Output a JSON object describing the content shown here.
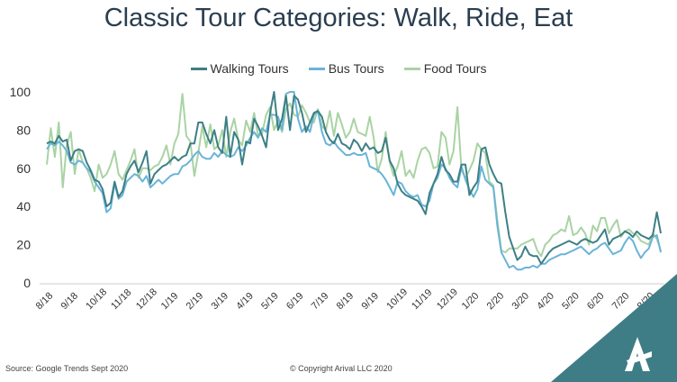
{
  "title": "Classic Tour Categories: Walk, Ride, Eat",
  "footer": {
    "source": "Source: Google Trends Sept 2020",
    "copyright": "© Copyright Arival LLC 2020"
  },
  "colors": {
    "walking": "#3d7f85",
    "bus": "#6ab4d8",
    "food": "#a9d3a4",
    "corner": "#3e7d86"
  },
  "chart_data": {
    "type": "line",
    "title": "Classic Tour Categories: Walk, Ride, Eat",
    "xlabel": "",
    "ylabel": "",
    "ylim": [
      0,
      100
    ],
    "yticks": [
      0,
      20,
      40,
      60,
      80,
      100
    ],
    "grid": false,
    "legend": "top-center",
    "x_tick_labels": [
      "8/18",
      "9/18",
      "10/18",
      "11/18",
      "12/18",
      "1/19",
      "2/19",
      "3/19",
      "4/19",
      "5/19",
      "6/19",
      "7/19",
      "8/19",
      "9/19",
      "10/19",
      "11/19",
      "12/19",
      "1/20",
      "2/20",
      "3/20",
      "4/20",
      "5/20",
      "6/20",
      "7/20",
      "8/20"
    ],
    "series": [
      {
        "name": "Walking Tours",
        "color": "#3d7f85",
        "values": [
          73,
          74,
          73,
          77,
          74,
          75,
          64,
          69,
          70,
          69,
          63,
          59,
          54,
          53,
          49,
          40,
          42,
          53,
          45,
          48,
          57,
          61,
          64,
          58,
          63,
          69,
          52,
          57,
          59,
          61,
          62,
          64,
          66,
          64,
          66,
          67,
          73,
          73,
          84,
          84,
          78,
          73,
          80,
          71,
          68,
          87,
          66,
          79,
          75,
          62,
          74,
          73,
          86,
          82,
          77,
          71,
          89,
          100,
          80,
          86,
          98,
          80,
          98,
          96,
          89,
          79,
          84,
          89,
          90,
          87,
          79,
          75,
          73,
          78,
          73,
          72,
          70,
          75,
          73,
          69,
          73,
          70,
          71,
          68,
          69,
          76,
          64,
          60,
          52,
          48,
          46,
          45,
          44,
          43,
          40,
          36,
          47,
          52,
          57,
          66,
          59,
          57,
          53,
          53,
          62,
          62,
          46,
          50,
          53,
          70,
          71,
          62,
          57,
          53,
          52,
          37,
          24,
          18,
          12,
          14,
          19,
          15,
          14,
          14,
          10,
          13,
          16,
          18,
          19,
          20,
          21,
          22,
          21,
          20,
          22,
          23,
          22,
          21,
          22,
          25,
          28,
          20,
          23,
          24,
          25,
          27,
          26,
          24,
          27,
          25,
          24,
          23,
          25,
          37,
          26
        ]
      },
      {
        "name": "Bus Tours",
        "color": "#6ab4d8",
        "values": [
          70,
          73,
          72,
          74,
          72,
          69,
          63,
          62,
          64,
          63,
          60,
          58,
          53,
          50,
          47,
          37,
          39,
          52,
          44,
          46,
          53,
          55,
          57,
          56,
          53,
          56,
          50,
          52,
          54,
          52,
          54,
          56,
          57,
          57,
          61,
          62,
          64,
          67,
          69,
          66,
          65,
          65,
          68,
          66,
          69,
          67,
          66,
          67,
          71,
          69,
          72,
          76,
          79,
          76,
          81,
          79,
          88,
          88,
          87,
          80,
          99,
          100,
          100,
          86,
          79,
          82,
          79,
          88,
          90,
          79,
          73,
          72,
          74,
          71,
          69,
          67,
          67,
          68,
          67,
          67,
          68,
          61,
          60,
          59,
          57,
          54,
          50,
          46,
          53,
          52,
          48,
          46,
          45,
          46,
          41,
          40,
          43,
          52,
          55,
          62,
          60,
          55,
          52,
          50,
          61,
          54,
          49,
          45,
          49,
          61,
          54,
          52,
          50,
          30,
          16,
          12,
          8,
          9,
          7,
          7,
          8,
          8,
          9,
          8,
          10,
          10,
          12,
          13,
          14,
          15,
          15,
          16,
          17,
          18,
          19,
          17,
          15,
          17,
          18,
          20,
          21,
          18,
          15,
          16,
          17,
          21,
          24,
          22,
          17,
          13,
          16,
          18,
          24,
          25,
          16
        ]
      },
      {
        "name": "Food Tours",
        "color": "#a9d3a4",
        "values": [
          62,
          81,
          66,
          84,
          50,
          72,
          79,
          57,
          70,
          63,
          60,
          55,
          48,
          62,
          55,
          57,
          62,
          69,
          57,
          54,
          59,
          64,
          70,
          55,
          60,
          60,
          59,
          61,
          62,
          66,
          72,
          62,
          73,
          78,
          99,
          77,
          74,
          56,
          68,
          82,
          71,
          83,
          70,
          72,
          80,
          66,
          79,
          86,
          75,
          72,
          85,
          79,
          89,
          77,
          78,
          88,
          92,
          80,
          85,
          79,
          91,
          94,
          88,
          87,
          93,
          89,
          84,
          84,
          91,
          82,
          80,
          90,
          77,
          89,
          83,
          76,
          79,
          86,
          79,
          78,
          77,
          87,
          76,
          58,
          65,
          79,
          63,
          56,
          61,
          69,
          56,
          59,
          55,
          64,
          70,
          71,
          68,
          60,
          61,
          79,
          76,
          62,
          69,
          92,
          59,
          55,
          59,
          64,
          73,
          70,
          68,
          53,
          51,
          33,
          17,
          16,
          18,
          18,
          18,
          20,
          21,
          22,
          23,
          17,
          14,
          20,
          22,
          25,
          26,
          28,
          27,
          35,
          25,
          26,
          29,
          26,
          20,
          30,
          27,
          34,
          34,
          26,
          30,
          33,
          24,
          27,
          28,
          26,
          25,
          22,
          21,
          20,
          26,
          23,
          17
        ]
      }
    ]
  }
}
